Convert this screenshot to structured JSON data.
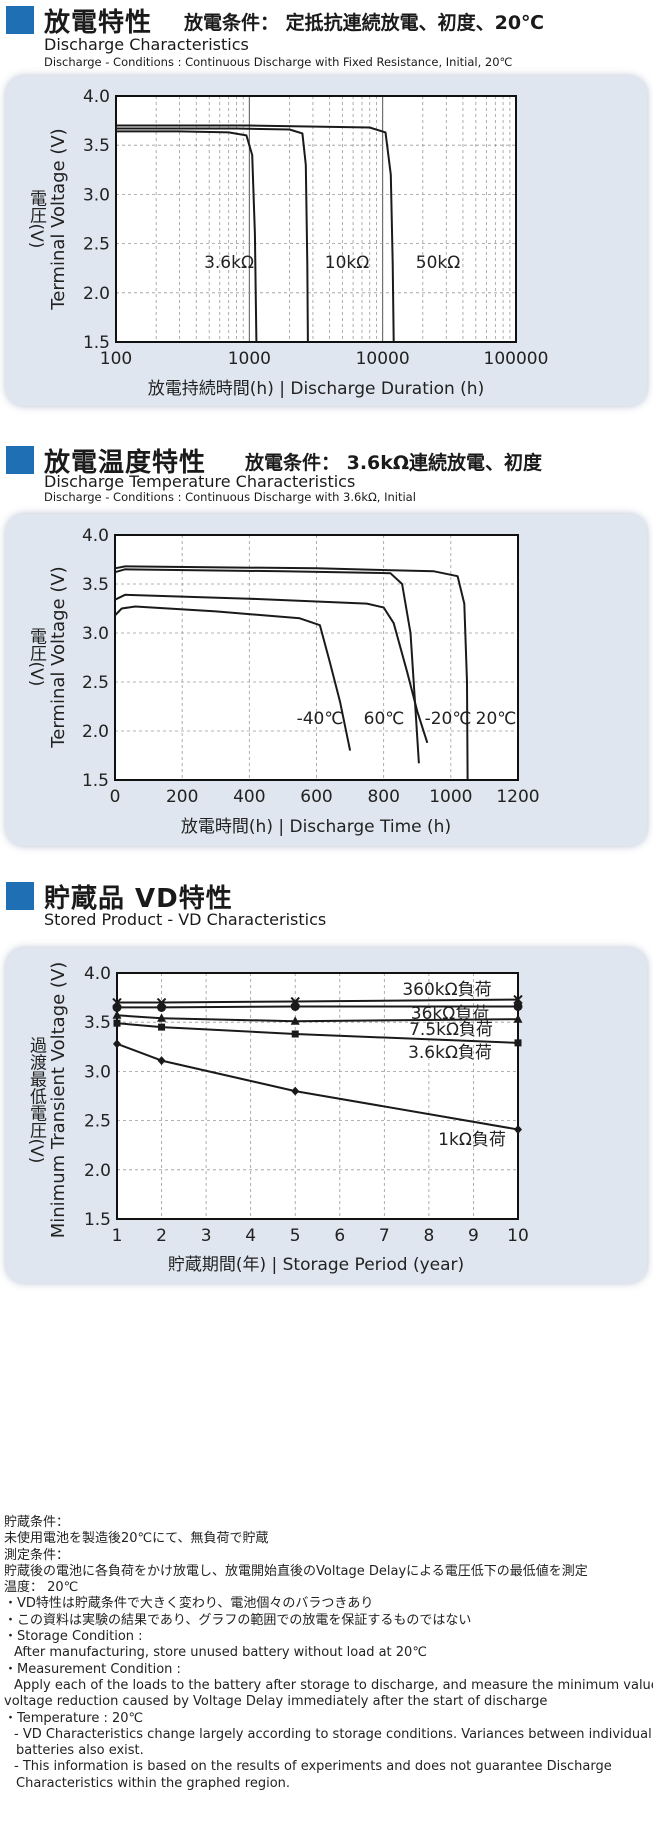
{
  "sections": [
    {
      "title_jp": "放電特性",
      "condition_jp": "放電条件：  定抵抗連続放電、初度、20℃",
      "title_en": "Discharge Characteristics",
      "condition_en": "Discharge - Conditions :  Continuous Discharge with Fixed Resistance, Initial, 20℃"
    },
    {
      "title_jp": "放電温度特性",
      "condition_jp": "放電条件：  3.6kΩ連続放電、初度",
      "title_en": "Discharge Temperature Characteristics",
      "condition_en": "Discharge - Conditions :  Continuous Discharge with 3.6kΩ, Initial"
    },
    {
      "title_jp": "貯蔵品 VD特性",
      "condition_jp": "",
      "title_en": "Stored Product - VD Characteristics",
      "condition_en": ""
    }
  ],
  "chart_data": [
    {
      "type": "line",
      "xscale": "log",
      "xlim": [
        100,
        100000
      ],
      "ylim": [
        1.5,
        4.0
      ],
      "x_ticks": [
        "100",
        "1000",
        "10000",
        "100000"
      ],
      "y_ticks": [
        "1.5",
        "2.0",
        "2.5",
        "3.0",
        "3.5",
        "4.0"
      ],
      "xlabel": "放電持続時間(h) | Discharge Duration (h)",
      "ylabel_jp": "電圧(V)",
      "ylabel_en": "Terminal Voltage (V)",
      "grid": true,
      "series": [
        {
          "name": "3.6kΩ",
          "points": [
            [
              100,
              3.64
            ],
            [
              300,
              3.64
            ],
            [
              700,
              3.63
            ],
            [
              950,
              3.6
            ],
            [
              1050,
              3.4
            ],
            [
              1100,
              2.6
            ],
            [
              1130,
              1.5
            ]
          ]
        },
        {
          "name": "10kΩ",
          "points": [
            [
              100,
              3.67
            ],
            [
              800,
              3.67
            ],
            [
              2000,
              3.66
            ],
            [
              2500,
              3.62
            ],
            [
              2650,
              3.3
            ],
            [
              2720,
              2.3
            ],
            [
              2750,
              1.5
            ]
          ]
        },
        {
          "name": "50kΩ",
          "points": [
            [
              100,
              3.7
            ],
            [
              1000,
              3.7
            ],
            [
              8000,
              3.68
            ],
            [
              10500,
              3.63
            ],
            [
              11500,
              3.2
            ],
            [
              11900,
              2.3
            ],
            [
              12100,
              1.5
            ]
          ]
        }
      ]
    },
    {
      "type": "line",
      "xlim": [
        0,
        1200
      ],
      "ylim": [
        1.5,
        4.0
      ],
      "x_ticks": [
        "0",
        "200",
        "400",
        "600",
        "800",
        "1000",
        "1200"
      ],
      "y_ticks": [
        "1.5",
        "2.0",
        "2.5",
        "3.0",
        "3.5",
        "4.0"
      ],
      "xlabel": "放電時間(h) | Discharge Time (h)",
      "ylabel_jp": "電圧(V)",
      "ylabel_en": "Terminal Voltage (V)",
      "grid": true,
      "series": [
        {
          "name": "-40℃",
          "points": [
            [
              0,
              3.18
            ],
            [
              20,
              3.25
            ],
            [
              60,
              3.27
            ],
            [
              300,
              3.22
            ],
            [
              550,
              3.15
            ],
            [
              610,
              3.08
            ],
            [
              640,
              2.7
            ],
            [
              670,
              2.3
            ],
            [
              700,
              1.8
            ]
          ]
        },
        {
          "name": "60℃",
          "points": [
            [
              0,
              3.62
            ],
            [
              30,
              3.65
            ],
            [
              500,
              3.63
            ],
            [
              820,
              3.61
            ],
            [
              855,
              3.5
            ],
            [
              880,
              3.0
            ],
            [
              895,
              2.2
            ],
            [
              905,
              1.67
            ]
          ]
        },
        {
          "name": "-20℃",
          "points": [
            [
              0,
              3.34
            ],
            [
              30,
              3.39
            ],
            [
              400,
              3.35
            ],
            [
              750,
              3.3
            ],
            [
              800,
              3.26
            ],
            [
              830,
              3.1
            ],
            [
              870,
              2.6
            ],
            [
              900,
              2.2
            ],
            [
              930,
              1.88
            ]
          ]
        },
        {
          "name": "20℃",
          "points": [
            [
              0,
              3.66
            ],
            [
              30,
              3.68
            ],
            [
              600,
              3.66
            ],
            [
              950,
              3.63
            ],
            [
              1020,
              3.58
            ],
            [
              1040,
              3.3
            ],
            [
              1048,
              2.5
            ],
            [
              1050,
              1.5
            ]
          ]
        }
      ]
    },
    {
      "type": "line",
      "xlim": [
        1,
        10
      ],
      "ylim": [
        1.5,
        4.0
      ],
      "x_ticks": [
        "1",
        "2",
        "3",
        "4",
        "5",
        "6",
        "7",
        "8",
        "9",
        "10"
      ],
      "y_ticks": [
        "1.5",
        "2.0",
        "2.5",
        "3.0",
        "3.5",
        "4.0"
      ],
      "xlabel": "貯蔵期間(年) | Storage Period (year)",
      "ylabel_jp": "過渡最低電圧(V)",
      "ylabel_en": "Minimum Transient Voltage (V)",
      "grid": true,
      "series": [
        {
          "name": "360kΩ負荷",
          "marker": "x",
          "points": [
            [
              1,
              3.7
            ],
            [
              2,
              3.7
            ],
            [
              5,
              3.71
            ],
            [
              10,
              3.73
            ]
          ]
        },
        {
          "name": "36kΩ負荷",
          "marker": "circle",
          "points": [
            [
              1,
              3.65
            ],
            [
              2,
              3.65
            ],
            [
              5,
              3.66
            ],
            [
              10,
              3.66
            ]
          ]
        },
        {
          "name": "7.5kΩ負荷",
          "marker": "triangle",
          "points": [
            [
              1,
              3.57
            ],
            [
              2,
              3.54
            ],
            [
              5,
              3.51
            ],
            [
              10,
              3.53
            ]
          ]
        },
        {
          "name": "3.6kΩ負荷",
          "marker": "square",
          "points": [
            [
              1,
              3.49
            ],
            [
              2,
              3.45
            ],
            [
              5,
              3.38
            ],
            [
              10,
              3.29
            ]
          ]
        },
        {
          "name": "1kΩ負荷",
          "marker": "diamond",
          "points": [
            [
              1,
              3.28
            ],
            [
              2,
              3.11
            ],
            [
              5,
              2.8
            ],
            [
              10,
              2.41
            ]
          ]
        }
      ]
    }
  ],
  "notes": [
    "貯蔵条件：",
    "未使用電池を製造後20℃にて、無負荷で貯蔵",
    "測定条件：",
    "貯蔵後の電池に各負荷をかけ放電し、放電開始直後のVoltage Delayによる電圧低下の最低値を測定",
    "温度：  20℃",
    "・VD特性は貯蔵条件で大きく変わり、電池個々のバラつきあり",
    "・この資料は実験の結果であり、グラフの範囲での放電を保証するものではない",
    "・Storage Condition :",
    "After manufacturing, store unused battery without load at 20℃",
    "・Measurement Condition :",
    "Apply each of the loads to the battery after storage to discharge, and measure the minimum value of",
    "voltage reduction caused by Voltage Delay immediately after the start of discharge",
    "・Temperature :  20℃",
    "- VD Characteristics change largely according to storage conditions. Variances between individual",
    "batteries also exist.",
    "- This information is based on the results of experiments and does not guarantee Discharge",
    "Characteristics within the graphed region."
  ]
}
